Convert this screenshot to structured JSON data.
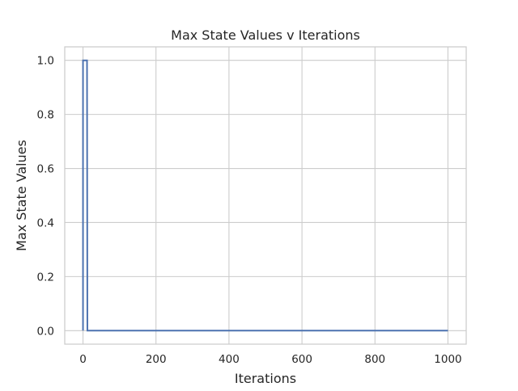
{
  "chart_data": {
    "type": "line",
    "title": "Max State Values v Iterations",
    "xlabel": "Iterations",
    "ylabel": "Max State Values",
    "xlim": [
      -50,
      1050
    ],
    "ylim": [
      -0.05,
      1.05
    ],
    "xticks": [
      0,
      200,
      400,
      600,
      800,
      1000
    ],
    "yticks": [
      0.0,
      0.2,
      0.4,
      0.6,
      0.8,
      1.0
    ],
    "xtick_labels": [
      "0",
      "200",
      "400",
      "600",
      "800",
      "1000"
    ],
    "ytick_labels": [
      "0.0",
      "0.2",
      "0.4",
      "0.6",
      "0.8",
      "1.0"
    ],
    "grid": true,
    "series": [
      {
        "color": "#4c72b0",
        "x": [
          0,
          0,
          1,
          2,
          3,
          4,
          5,
          6,
          7,
          8,
          9,
          10,
          11,
          12,
          13,
          1000
        ],
        "y": [
          0,
          1,
          1,
          1,
          1,
          1,
          1,
          1,
          1,
          1,
          1,
          1,
          1,
          0,
          0,
          0
        ]
      }
    ]
  }
}
